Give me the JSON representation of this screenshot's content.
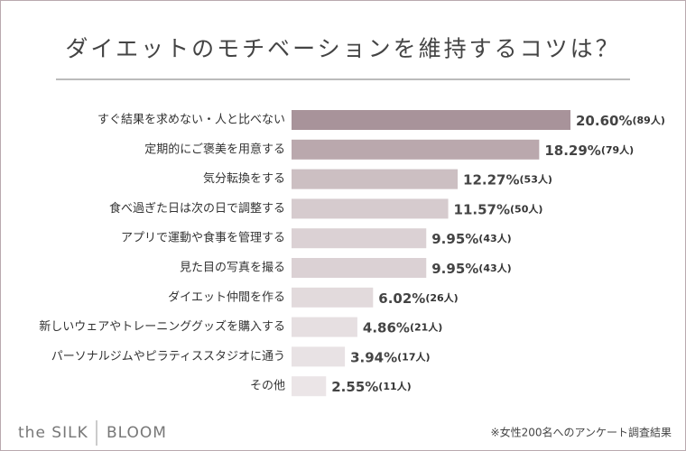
{
  "chart_data": {
    "type": "bar",
    "orientation": "horizontal",
    "title": "ダイエットのモチベーションを維持するコツは？",
    "categories": [
      "すぐ結果を求めない・人と比べない",
      "定期的にご褒美を用意する",
      "気分転換をする",
      "食べ過ぎた日は次の日で調整する",
      "アプリで運動や食事を管理する",
      "見た目の写真を撮る",
      "ダイエット仲間を作る",
      "新しいウェアやトレーニンググッズを購入する",
      "パーソナルジムやピラティススタジオに通う",
      "その他"
    ],
    "values": [
      20.6,
      18.29,
      12.27,
      11.57,
      9.95,
      9.95,
      6.02,
      4.86,
      3.94,
      2.55
    ],
    "value_labels": [
      "20.60%",
      "18.29%",
      "12.27%",
      "11.57%",
      "9.95%",
      "9.95%",
      "6.02%",
      "4.86%",
      "3.94%",
      "2.55%"
    ],
    "count_labels": [
      "(89人)",
      "(79人)",
      "(53人)",
      "(50人)",
      "(43人)",
      "(43人)",
      "(26人)",
      "(21人)",
      "(17人)",
      "(11人)"
    ],
    "colors": [
      "#a8939a",
      "#baa8ad",
      "#ccbfc2",
      "#d6cbce",
      "#dbd1d4",
      "#dbd1d4",
      "#e2dadc",
      "#e6dfe1",
      "#e8e2e4",
      "#ebe5e7"
    ],
    "note": "※女性200名へのアンケート調査結果"
  },
  "brand": {
    "left": "the SILK",
    "right": "BLOOM"
  }
}
